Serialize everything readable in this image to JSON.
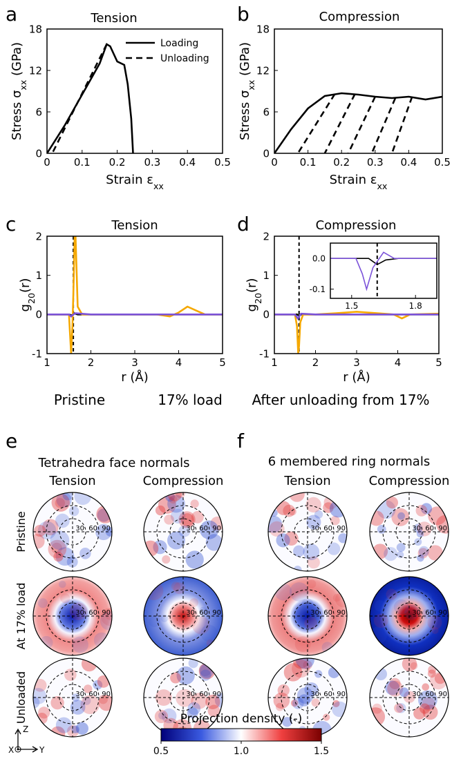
{
  "chart_data": [
    {
      "type": "line",
      "panel": "a",
      "title": "Tension",
      "xlabel": [
        "Strain ε",
        "xx"
      ],
      "ylabel": [
        "Stress σ",
        "xx",
        " (GPa)"
      ],
      "xlim": [
        0,
        0.5
      ],
      "xticks": [
        0,
        0.1,
        0.2,
        0.3,
        0.4,
        0.5
      ],
      "ylim": [
        0,
        18
      ],
      "yticks": [
        0,
        6,
        12,
        18
      ],
      "legend": "upper right",
      "series": [
        {
          "name": "Loading",
          "color": "#000000",
          "dash": false,
          "x": [
            0,
            0.05,
            0.1,
            0.15,
            0.17,
            0.18,
            0.2,
            0.22,
            0.23,
            0.24,
            0.245
          ],
          "values": [
            0,
            4,
            8.5,
            13,
            15.8,
            15.5,
            13.3,
            12.8,
            10,
            5,
            0
          ]
        },
        {
          "name": "Unloading",
          "color": "#000000",
          "dash": true,
          "x": [
            0.17,
            0.015
          ],
          "values": [
            15.8,
            0
          ]
        }
      ]
    },
    {
      "type": "line",
      "panel": "b",
      "title": "Compression",
      "xlabel": [
        "Strain ε",
        "xx"
      ],
      "ylabel": [
        "Stress σ",
        "xx",
        " (GPa)"
      ],
      "xlim": [
        0,
        0.5
      ],
      "xticks": [
        0,
        0.1,
        0.2,
        0.3,
        0.4,
        0.5
      ],
      "ylim": [
        0,
        18
      ],
      "yticks": [
        0,
        6,
        12,
        18
      ],
      "series": [
        {
          "color": "#000000",
          "dash": false,
          "x": [
            0,
            0.05,
            0.1,
            0.15,
            0.2,
            0.25,
            0.3,
            0.35,
            0.4,
            0.45,
            0.5
          ],
          "values": [
            0,
            3.5,
            6.5,
            8.3,
            8.7,
            8.5,
            8.2,
            8,
            8.2,
            7.8,
            8.2
          ]
        },
        {
          "color": "#000000",
          "dash": true,
          "x": [
            0.18,
            0.07
          ],
          "values": [
            8.6,
            0
          ]
        },
        {
          "color": "#000000",
          "dash": true,
          "x": [
            0.24,
            0.15
          ],
          "values": [
            8.6,
            0
          ]
        },
        {
          "color": "#000000",
          "dash": true,
          "x": [
            0.3,
            0.22
          ],
          "values": [
            8.2,
            0
          ]
        },
        {
          "color": "#000000",
          "dash": true,
          "x": [
            0.36,
            0.29
          ],
          "values": [
            8,
            0
          ]
        },
        {
          "color": "#000000",
          "dash": true,
          "x": [
            0.41,
            0.35
          ],
          "values": [
            8.2,
            0
          ]
        }
      ]
    },
    {
      "type": "line",
      "panel": "c",
      "title": "Tension",
      "xlabel": [
        "r (Å)"
      ],
      "ylabel": [
        "g",
        "20",
        "(r)"
      ],
      "xlim": [
        1,
        5
      ],
      "xticks": [
        1,
        2,
        3,
        4,
        5
      ],
      "ylim": [
        -1,
        2
      ],
      "yticks": [
        -1,
        0,
        1,
        2
      ],
      "vline": 1.6,
      "series": [
        {
          "name": "Pristine",
          "color": "#000000",
          "dash": false,
          "x": [
            1,
            1.5,
            1.58,
            1.62,
            1.7,
            2,
            5
          ],
          "values": [
            0,
            0,
            -0.03,
            0.03,
            0,
            0,
            0
          ]
        },
        {
          "name": "17% load",
          "color": "#f5a800",
          "dash": false,
          "x": [
            1,
            1.5,
            1.52,
            1.55,
            1.58,
            1.6,
            1.63,
            1.65,
            1.7,
            1.8,
            2,
            3,
            3.5,
            3.8,
            4,
            4.2,
            4.4,
            4.6,
            5
          ],
          "values": [
            0,
            0,
            -0.4,
            -1,
            -0.3,
            0.5,
            2,
            2,
            0.2,
            0,
            0,
            0,
            0,
            -0.05,
            0.05,
            0.2,
            0.1,
            0,
            0
          ]
        },
        {
          "name": "After unloading from 17%",
          "color": "#7b52d9",
          "dash": false,
          "x": [
            1,
            1.5,
            1.55,
            1.6,
            1.65,
            2,
            5
          ],
          "values": [
            0,
            0,
            -0.05,
            0,
            0.03,
            0,
            0
          ]
        }
      ]
    },
    {
      "type": "line",
      "panel": "d",
      "title": "Compression",
      "xlabel": [
        "r (Å)"
      ],
      "ylabel": [
        "g",
        "20",
        "(r)"
      ],
      "xlim": [
        1,
        5
      ],
      "xticks": [
        1,
        2,
        3,
        4,
        5
      ],
      "ylim": [
        -1,
        2
      ],
      "yticks": [
        -1,
        0,
        1,
        2
      ],
      "vline": 1.6,
      "series": [
        {
          "color": "#000000",
          "dash": false,
          "x": [
            1,
            1.55,
            1.6,
            1.65,
            2,
            5
          ],
          "values": [
            0,
            0,
            -0.03,
            0,
            0,
            0
          ]
        },
        {
          "color": "#f5a800",
          "dash": false,
          "x": [
            1,
            1.5,
            1.55,
            1.58,
            1.6,
            1.63,
            1.7,
            2,
            2.5,
            3,
            3.5,
            3.9,
            4.1,
            4.3,
            5
          ],
          "values": [
            0,
            0,
            -0.3,
            -1,
            -0.8,
            -0.2,
            0,
            0,
            0.03,
            0.07,
            0.03,
            0,
            -0.1,
            0,
            0.02
          ]
        },
        {
          "color": "#7b52d9",
          "dash": false,
          "x": [
            1,
            1.5,
            1.57,
            1.65,
            2,
            5
          ],
          "values": [
            0,
            0,
            -0.1,
            0.02,
            0,
            0
          ]
        }
      ]
    },
    {
      "type": "line",
      "xlim": [
        1.4,
        1.9
      ],
      "xticks": [
        1.5,
        1.8
      ],
      "ylim": [
        -0.13,
        0.05
      ],
      "yticks": [
        {
          "value": 0,
          "label": "0.0"
        },
        -0.1
      ],
      "vline": 1.62,
      "series": [
        {
          "color": "#000000",
          "dash": false,
          "x": [
            1.4,
            1.58,
            1.62,
            1.66,
            1.72,
            1.9
          ],
          "values": [
            0,
            0,
            -0.02,
            -0.005,
            0,
            0
          ]
        },
        {
          "color": "#7b52d9",
          "dash": false,
          "x": [
            1.4,
            1.52,
            1.55,
            1.57,
            1.6,
            1.65,
            1.7,
            1.9
          ],
          "values": [
            0,
            0,
            -0.05,
            -0.1,
            -0.03,
            0.02,
            0,
            0
          ]
        }
      ]
    }
  ],
  "polar": {
    "groups": [
      {
        "panel": "e",
        "title": "Tetrahedra face normals",
        "columns": [
          "Tension",
          "Compression"
        ]
      },
      {
        "panel": "f",
        "title": "6 membered ring normals",
        "columns": [
          "Tension",
          "Compression"
        ]
      }
    ],
    "rows": [
      "Pristine",
      "At 17% load",
      "Unloaded"
    ],
    "ticks": [
      30,
      60,
      90
    ]
  },
  "colorbar": {
    "label": "Projection density (-)",
    "lim": [
      0.5,
      1.5
    ],
    "ticks": [
      0.5,
      {
        "value": 1,
        "label": "1.0"
      },
      1.5
    ]
  },
  "axes_icon": {
    "z": "Z",
    "x": "X",
    "y": "Y"
  }
}
